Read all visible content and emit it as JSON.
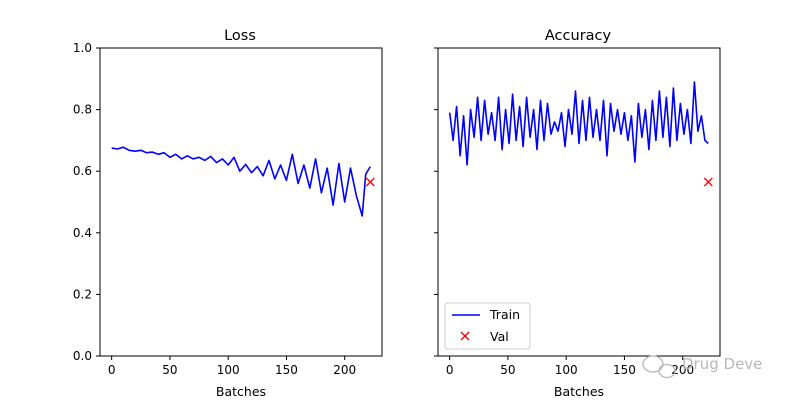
{
  "chart_data": [
    {
      "type": "line",
      "title": "Loss",
      "xlabel": "Batches",
      "ylabel": "",
      "xlim": [
        -10,
        232
      ],
      "ylim": [
        0.0,
        1.0
      ],
      "xticks": [
        "0",
        "50",
        "100",
        "150",
        "200"
      ],
      "xtick_values": [
        0,
        50,
        100,
        150,
        200
      ],
      "yticks": [
        "0.0",
        "0.2",
        "0.4",
        "0.6",
        "0.8",
        "1.0"
      ],
      "ytick_values": [
        0.0,
        0.2,
        0.4,
        0.6,
        0.8,
        1.0
      ],
      "series": [
        {
          "name": "Train",
          "color": "#0000ff",
          "x": [
            0,
            5,
            10,
            15,
            20,
            25,
            30,
            35,
            40,
            45,
            50,
            55,
            60,
            65,
            70,
            75,
            80,
            85,
            90,
            95,
            100,
            105,
            110,
            115,
            120,
            125,
            130,
            135,
            140,
            145,
            150,
            155,
            160,
            165,
            170,
            175,
            180,
            185,
            190,
            195,
            200,
            205,
            210,
            215,
            218,
            222
          ],
          "y": [
            0.675,
            0.672,
            0.678,
            0.668,
            0.665,
            0.668,
            0.66,
            0.662,
            0.655,
            0.66,
            0.645,
            0.655,
            0.64,
            0.65,
            0.64,
            0.645,
            0.635,
            0.648,
            0.628,
            0.64,
            0.62,
            0.645,
            0.6,
            0.622,
            0.595,
            0.615,
            0.585,
            0.635,
            0.575,
            0.62,
            0.57,
            0.655,
            0.56,
            0.62,
            0.545,
            0.64,
            0.53,
            0.61,
            0.49,
            0.625,
            0.5,
            0.61,
            0.52,
            0.455,
            0.59,
            0.615
          ]
        },
        {
          "name": "Val",
          "color": "#ff0000",
          "marker": "x",
          "x": [
            222
          ],
          "y": [
            0.565
          ]
        }
      ]
    },
    {
      "type": "line",
      "title": "Accuracy",
      "xlabel": "Batches",
      "ylabel": "",
      "xlim": [
        -10,
        232
      ],
      "ylim": [
        0.0,
        1.0
      ],
      "xticks": [
        "0",
        "50",
        "100",
        "150",
        "200"
      ],
      "xtick_values": [
        0,
        50,
        100,
        150,
        200
      ],
      "series": [
        {
          "name": "Train",
          "color": "#0000ff",
          "x": [
            0,
            3,
            6,
            9,
            12,
            15,
            18,
            21,
            24,
            27,
            30,
            33,
            36,
            39,
            42,
            45,
            48,
            51,
            54,
            57,
            60,
            63,
            66,
            69,
            72,
            75,
            78,
            81,
            84,
            87,
            90,
            93,
            96,
            99,
            102,
            105,
            108,
            111,
            114,
            117,
            120,
            123,
            126,
            129,
            132,
            135,
            138,
            141,
            144,
            147,
            150,
            153,
            156,
            159,
            162,
            165,
            168,
            171,
            174,
            177,
            180,
            183,
            186,
            189,
            192,
            195,
            198,
            201,
            204,
            207,
            210,
            213,
            216,
            219,
            222
          ],
          "y": [
            0.79,
            0.7,
            0.81,
            0.65,
            0.78,
            0.62,
            0.8,
            0.71,
            0.84,
            0.7,
            0.83,
            0.72,
            0.79,
            0.7,
            0.84,
            0.67,
            0.8,
            0.69,
            0.85,
            0.7,
            0.81,
            0.68,
            0.84,
            0.71,
            0.8,
            0.67,
            0.83,
            0.7,
            0.82,
            0.72,
            0.76,
            0.73,
            0.79,
            0.68,
            0.8,
            0.72,
            0.86,
            0.69,
            0.83,
            0.7,
            0.84,
            0.71,
            0.8,
            0.7,
            0.83,
            0.65,
            0.82,
            0.73,
            0.8,
            0.72,
            0.79,
            0.7,
            0.78,
            0.63,
            0.82,
            0.71,
            0.8,
            0.67,
            0.83,
            0.7,
            0.86,
            0.71,
            0.84,
            0.68,
            0.87,
            0.7,
            0.82,
            0.72,
            0.8,
            0.69,
            0.89,
            0.73,
            0.78,
            0.7,
            0.69
          ]
        },
        {
          "name": "Val",
          "color": "#ff0000",
          "marker": "x",
          "x": [
            222
          ],
          "y": [
            0.565
          ]
        }
      ]
    }
  ],
  "legend": {
    "placement": "lower-left",
    "entries": [
      {
        "label": "Train",
        "color": "#0000ff",
        "kind": "line"
      },
      {
        "label": "Val",
        "color": "#ff0000",
        "kind": "x-marker"
      }
    ]
  },
  "watermark": {
    "text": "Drug Deve",
    "icon": "wechat-icon",
    "color": "#b8b8b8"
  }
}
